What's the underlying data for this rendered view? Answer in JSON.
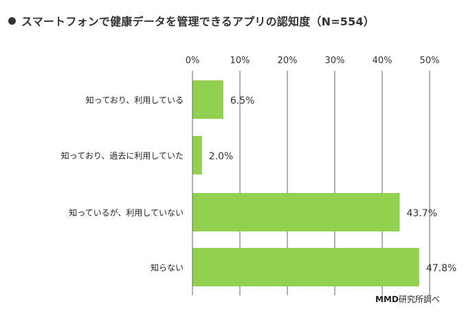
{
  "title": "スマートフォンで健康データを管理できるアプリの認知度（N=554）",
  "credit_brand": "MMD",
  "credit_text": "研究所調べ",
  "chart_data": {
    "type": "bar",
    "orientation": "horizontal",
    "title": "スマートフォンで健康データを管理できるアプリの認知度（N=554）",
    "categories": [
      "知っており、利用している",
      "知っており、過去に利用していた",
      "知っているが、利用していない",
      "知らない"
    ],
    "values": [
      6.5,
      2.0,
      43.7,
      47.8
    ],
    "value_labels": [
      "6.5%",
      "2.0%",
      "43.7%",
      "47.8%"
    ],
    "xlim": [
      0,
      50
    ],
    "ticks": [
      0,
      10,
      20,
      30,
      40,
      50
    ],
    "tick_labels": [
      "0%",
      "10%",
      "20%",
      "30%",
      "40%",
      "50%"
    ],
    "axis_position": "top",
    "grid": true,
    "legend": "none",
    "bar_color": "#92d050",
    "grid_color": "#666666"
  }
}
